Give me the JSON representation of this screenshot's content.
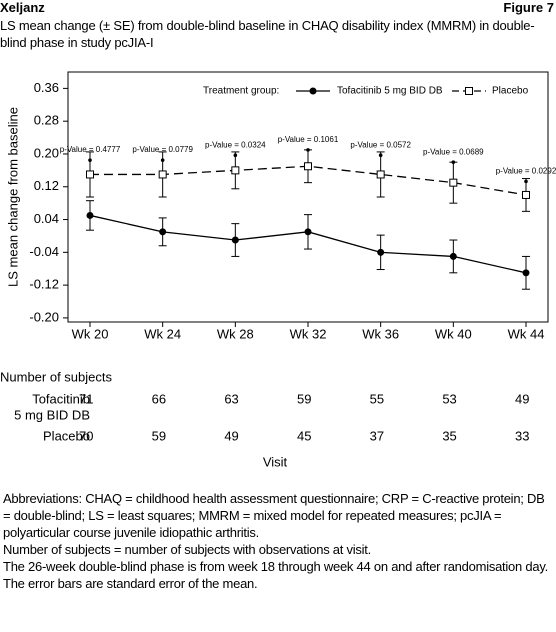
{
  "header": {
    "left": "Xeljanz",
    "right": "Figure 7",
    "caption": "LS mean change (± SE) from double-blind baseline in CHAQ disability index (MMRM) in double-blind phase in study pcJIA-I"
  },
  "chart_data": {
    "type": "line",
    "ylabel": "LS mean change from baseline",
    "xlabel": "Visit",
    "categories": [
      "Wk 20",
      "Wk 24",
      "Wk 28",
      "Wk 32",
      "Wk 36",
      "Wk 40",
      "Wk 44"
    ],
    "ylim": [
      -0.21,
      0.4
    ],
    "yticks": [
      {
        "value": 0.36,
        "label": "0.36"
      },
      {
        "value": 0.28,
        "label": "0.28"
      },
      {
        "value": 0.2,
        "label": "0.20"
      },
      {
        "value": 0.12,
        "label": "0.12"
      },
      {
        "value": 0.04,
        "label": "0.04"
      },
      {
        "value": -0.04,
        "label": "-0.04"
      },
      {
        "value": -0.12,
        "label": "-0.12"
      },
      {
        "value": -0.2,
        "label": "-0.20"
      }
    ],
    "legend_title": "Treatment group:",
    "legend_position": "top-right",
    "series": [
      {
        "name": "Tofacitinib 5 mg BID DB",
        "color": "#000000",
        "line_style": "solid",
        "marker": "circle",
        "values": [
          0.05,
          0.01,
          -0.01,
          0.01,
          -0.04,
          -0.05,
          -0.09
        ],
        "errors": [
          0.036,
          0.034,
          0.04,
          0.042,
          0.042,
          0.04,
          0.04
        ]
      },
      {
        "name": "Placebo",
        "color": "#000000",
        "line_style": "dashed",
        "marker": "square",
        "values": [
          0.15,
          0.15,
          0.16,
          0.17,
          0.15,
          0.13,
          0.1
        ],
        "errors": [
          0.055,
          0.055,
          0.045,
          0.04,
          0.055,
          0.05,
          0.04
        ]
      }
    ],
    "p_values": [
      {
        "label": "p-Value = 0.4777",
        "y": 0.185
      },
      {
        "label": "p-Value = 0.0779",
        "y": 0.185
      },
      {
        "label": "p-Value = 0.0324",
        "y": 0.197
      },
      {
        "label": "p-Value = 0.1061",
        "y": 0.21
      },
      {
        "label": "p-Value = 0.0572",
        "y": 0.197
      },
      {
        "label": "p-Value = 0.0689",
        "y": 0.18
      },
      {
        "label": "p-Value = 0.0292",
        "y": 0.133
      }
    ]
  },
  "subjects_table": {
    "title": "Number of subjects",
    "rows": [
      {
        "label": [
          "Tofacitinib",
          "5 mg BID DB"
        ],
        "counts": [
          71,
          66,
          63,
          59,
          55,
          53,
          49
        ]
      },
      {
        "label": [
          "Placebo"
        ],
        "counts": [
          70,
          59,
          49,
          45,
          37,
          35,
          33
        ]
      }
    ]
  },
  "footnotes": [
    "Abbreviations: CHAQ = childhood health assessment questionnaire; CRP = C-reactive protein; DB = double-blind; LS = least squares; MMRM = mixed model for repeated measures; pcJIA = polyarticular course juvenile idiopathic arthritis.",
    "Number of subjects = number of subjects with observations at visit.",
    "The 26-week double-blind phase is from week 18 through week 44 on and after randomisation day.",
    "The error bars are standard error of the mean."
  ]
}
